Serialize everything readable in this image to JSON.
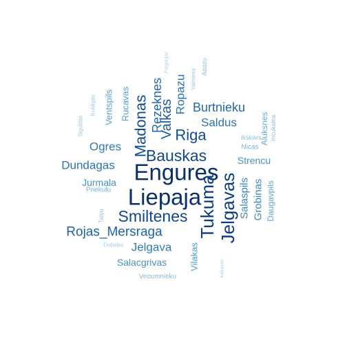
{
  "wordcloud": {
    "words": [
      {
        "text": "Engures",
        "weight": 1.0,
        "rotate": 0,
        "color": "#0a2f6b"
      },
      {
        "text": "Liepaja",
        "weight": 1.0,
        "rotate": 0,
        "color": "#0a2f6b"
      },
      {
        "text": "Tukuma",
        "weight": 0.8,
        "rotate": -90,
        "color": "#0b3b80"
      },
      {
        "text": "Jelgavas",
        "weight": 0.8,
        "rotate": -90,
        "color": "#0b3b80"
      },
      {
        "text": "Smiltenes",
        "weight": 0.72,
        "rotate": 0,
        "color": "#10468c"
      },
      {
        "text": "Bauskas",
        "weight": 0.7,
        "rotate": 0,
        "color": "#10468c"
      },
      {
        "text": "Madonas",
        "weight": 0.68,
        "rotate": -90,
        "color": "#114a92"
      },
      {
        "text": "Riga",
        "weight": 0.66,
        "rotate": 0,
        "color": "#114a92"
      },
      {
        "text": "Valkas",
        "weight": 0.62,
        "rotate": -90,
        "color": "#1a5ca1"
      },
      {
        "text": "Rojas_Mersraga",
        "weight": 0.6,
        "rotate": 0,
        "color": "#1d62a8"
      },
      {
        "text": "Rezeknes",
        "weight": 0.55,
        "rotate": -90,
        "color": "#2268ad"
      },
      {
        "text": "Burtnieku",
        "weight": 0.54,
        "rotate": 0,
        "color": "#2268ad"
      },
      {
        "text": "Dundagas",
        "weight": 0.52,
        "rotate": 0,
        "color": "#2a72b5"
      },
      {
        "text": "Ropazu",
        "weight": 0.52,
        "rotate": -90,
        "color": "#2a72b5"
      },
      {
        "text": "Saldus",
        "weight": 0.52,
        "rotate": 0,
        "color": "#2a72b5"
      },
      {
        "text": "Ogres",
        "weight": 0.5,
        "rotate": 0,
        "color": "#3079b9"
      },
      {
        "text": "Jelgava",
        "weight": 0.5,
        "rotate": 0,
        "color": "#3079b9"
      },
      {
        "text": "Salaspils",
        "weight": 0.46,
        "rotate": -90,
        "color": "#3a84c0"
      },
      {
        "text": "Grobinas",
        "weight": 0.44,
        "rotate": -90,
        "color": "#3f89c3"
      },
      {
        "text": "Strencu",
        "weight": 0.42,
        "rotate": 0,
        "color": "#4590c7"
      },
      {
        "text": "Jurmala",
        "weight": 0.42,
        "rotate": 0,
        "color": "#4590c7"
      },
      {
        "text": "Salacgrivas",
        "weight": 0.42,
        "rotate": 0,
        "color": "#4590c7"
      },
      {
        "text": "Vilakas",
        "weight": 0.38,
        "rotate": -90,
        "color": "#5199cc"
      },
      {
        "text": "Rucavas",
        "weight": 0.36,
        "rotate": -90,
        "color": "#579ecf"
      },
      {
        "text": "Ventspils",
        "weight": 0.36,
        "rotate": -90,
        "color": "#579ecf"
      },
      {
        "text": "Daugavpils",
        "weight": 0.34,
        "rotate": -90,
        "color": "#5ea3d1"
      },
      {
        "text": "Aluksnes",
        "weight": 0.32,
        "rotate": -90,
        "color": "#66a9d4"
      },
      {
        "text": "Nicas",
        "weight": 0.26,
        "rotate": 0,
        "color": "#7ab4da"
      },
      {
        "text": "Priekulu",
        "weight": 0.26,
        "rotate": 0,
        "color": "#7ab4da"
      },
      {
        "text": "Vecumnieku",
        "weight": 0.24,
        "rotate": 0,
        "color": "#82b9dc"
      },
      {
        "text": "Talsu",
        "weight": 0.22,
        "rotate": -90,
        "color": "#8ebfdf"
      },
      {
        "text": "Ikskiles",
        "weight": 0.22,
        "rotate": 0,
        "color": "#8ebfdf"
      },
      {
        "text": "Incukalna",
        "weight": 0.22,
        "rotate": -90,
        "color": "#8ebfdf"
      },
      {
        "text": "Adazu",
        "weight": 0.22,
        "rotate": -90,
        "color": "#8ebfdf"
      },
      {
        "text": "Valmiera",
        "weight": 0.2,
        "rotate": -90,
        "color": "#98c6e2"
      },
      {
        "text": "Kuldigas",
        "weight": 0.2,
        "rotate": -90,
        "color": "#98c6e2"
      },
      {
        "text": "Siguldas",
        "weight": 0.2,
        "rotate": -90,
        "color": "#98c6e2"
      },
      {
        "text": "Dobeles",
        "weight": 0.18,
        "rotate": 0,
        "color": "#a4cde5"
      },
      {
        "text": "Pargaujas",
        "weight": 0.16,
        "rotate": -90,
        "color": "#a4cde5"
      },
      {
        "text": "Kekavas",
        "weight": 0.16,
        "rotate": -90,
        "color": "#a4cde5"
      }
    ]
  }
}
